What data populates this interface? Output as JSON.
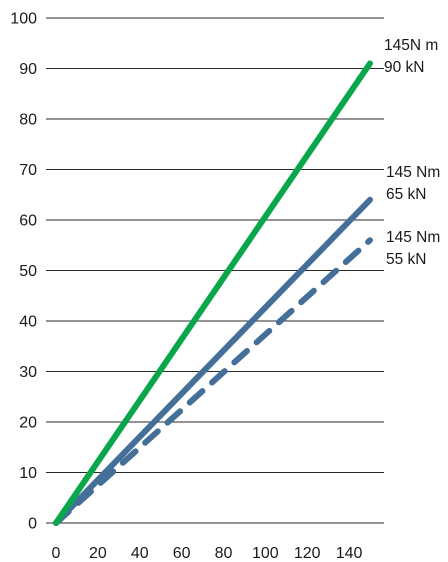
{
  "chart_data": {
    "type": "line",
    "title": "",
    "xlabel": "",
    "ylabel": "",
    "xlim": [
      0,
      150
    ],
    "ylim": [
      0,
      100
    ],
    "x_ticks": [
      "0",
      "20",
      "40",
      "60",
      "80",
      "100",
      "120",
      "140"
    ],
    "y_ticks": [
      "0",
      "10",
      "20",
      "30",
      "40",
      "50",
      "60",
      "70",
      "80",
      "90",
      "100"
    ],
    "grid": "horizontal",
    "legend": "none",
    "series": [
      {
        "color": "#0aa64a",
        "style": "solid",
        "points": [
          [
            0,
            0
          ],
          [
            150,
            91
          ]
        ],
        "annotation": [
          "145N m",
          "90 kN"
        ]
      },
      {
        "color": "#436f98",
        "style": "solid",
        "points": [
          [
            0,
            0
          ],
          [
            150,
            64
          ]
        ],
        "annotation": [
          "145 Nm",
          "65 kN"
        ]
      },
      {
        "color": "#436f98",
        "style": "dashed",
        "points": [
          [
            0,
            0
          ],
          [
            150,
            56
          ]
        ],
        "annotation": [
          "145 Nm",
          "55 kN"
        ]
      }
    ]
  }
}
